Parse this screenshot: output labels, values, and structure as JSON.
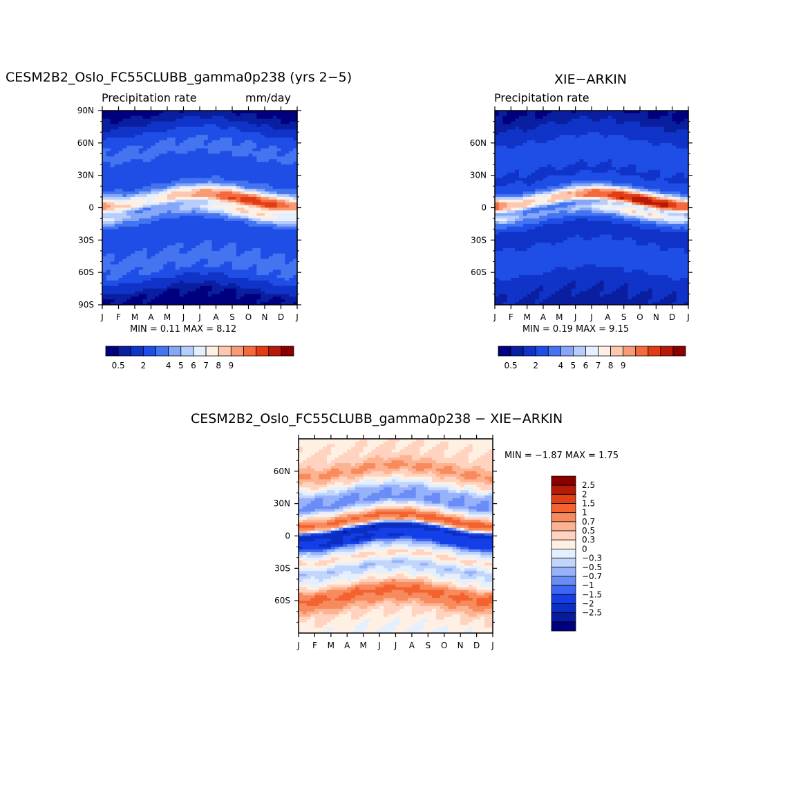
{
  "palette_abs": [
    "#00007f",
    "#0a1ea0",
    "#1033c8",
    "#1e4ee6",
    "#4474f0",
    "#86a7f7",
    "#b7cdfb",
    "#e4efff",
    "#fff0e4",
    "#fec8b0",
    "#f99a77",
    "#f5693f",
    "#e23d12",
    "#b91a07",
    "#8a0000"
  ],
  "palette_diff": [
    "#00007f",
    "#081a9e",
    "#0b2fc2",
    "#153fe6",
    "#3d66f2",
    "#6a8cf6",
    "#97b2fa",
    "#c2d6fc",
    "#e4efff",
    "#fff0e4",
    "#ffd3bf",
    "#fcb391",
    "#f88b5d",
    "#f3622f",
    "#e04015",
    "#b41c07",
    "#8a0000"
  ],
  "chart_data": [
    {
      "id": "model",
      "type": "heatmap",
      "title": "CESM2B2_Oslo_FC55CLUBB_gamma0p238 (yrs 2−5)",
      "left_subtitle": "Precipitation  rate",
      "right_subtitle": "mm/day",
      "x_tick_labels": [
        "J",
        "F",
        "M",
        "A",
        "M",
        "J",
        "J",
        "A",
        "S",
        "O",
        "N",
        "D",
        "J"
      ],
      "y_tick_labels": [
        "90N",
        "60N",
        "30N",
        "0",
        "30S",
        "60S",
        "90S"
      ],
      "y_tick_values": [
        90,
        60,
        30,
        0,
        -30,
        -60,
        -90
      ],
      "ylim": [
        -90,
        90
      ],
      "min_max_text": "MIN =    0.11  MAX =     8.12",
      "colorbar_labels": [
        "0.5",
        "2",
        "4",
        "5",
        "6",
        "7",
        "8",
        "9"
      ],
      "profile_lat": [
        -90,
        -80,
        -70,
        -60,
        -50,
        -40,
        -30,
        -20,
        -15,
        -10,
        -5,
        0,
        5,
        10,
        15,
        20,
        30,
        40,
        50,
        60,
        70,
        80,
        90
      ],
      "profile_val": [
        0.3,
        0.5,
        1.5,
        3.0,
        3.2,
        3.0,
        2.6,
        2.3,
        2.8,
        4.2,
        5.2,
        4.8,
        6.8,
        6.5,
        4.8,
        3.2,
        2.2,
        2.6,
        3.2,
        3.0,
        2.0,
        0.8,
        0.3
      ]
    },
    {
      "id": "obs",
      "type": "heatmap",
      "title": "XIE−ARKIN",
      "left_subtitle": "Precipitation  rate",
      "x_tick_labels": [
        "J",
        "F",
        "M",
        "A",
        "M",
        "J",
        "J",
        "A",
        "S",
        "O",
        "N",
        "D",
        "J"
      ],
      "y_tick_labels": [
        "60N",
        "30N",
        "0",
        "30S",
        "60S"
      ],
      "y_tick_values": [
        60,
        30,
        0,
        -30,
        -60
      ],
      "ylim": [
        -90,
        90
      ],
      "min_max_text": "MIN =    0.19  MAX =     9.15",
      "colorbar_labels": [
        "0.5",
        "2",
        "4",
        "5",
        "6",
        "7",
        "8",
        "9"
      ],
      "profile_lat": [
        -90,
        -80,
        -70,
        -60,
        -50,
        -40,
        -30,
        -20,
        -15,
        -10,
        -5,
        0,
        5,
        10,
        15,
        20,
        30,
        40,
        50,
        60,
        70,
        80,
        90
      ],
      "profile_val": [
        0.8,
        1.0,
        1.2,
        2.0,
        2.8,
        2.4,
        1.8,
        1.6,
        2.4,
        4.0,
        5.2,
        4.2,
        7.2,
        7.0,
        4.6,
        2.6,
        1.8,
        2.2,
        2.6,
        2.2,
        1.4,
        0.8,
        0.4
      ]
    },
    {
      "id": "diff",
      "type": "heatmap",
      "title": "CESM2B2_Oslo_FC55CLUBB_gamma0p238  −  XIE−ARKIN",
      "x_tick_labels": [
        "J",
        "F",
        "M",
        "A",
        "M",
        "J",
        "J",
        "A",
        "S",
        "O",
        "N",
        "D",
        "J"
      ],
      "y_tick_labels": [
        "60N",
        "30N",
        "0",
        "30S",
        "60S"
      ],
      "y_tick_values": [
        60,
        30,
        0,
        -30,
        -60
      ],
      "ylim": [
        -90,
        90
      ],
      "min_max_text": "MIN =    −1.87  MAX =      1.75",
      "colorbar_labels": [
        "2.5",
        "2",
        "1.5",
        "1",
        "0.7",
        "0.5",
        "0.3",
        "0",
        "−0.3",
        "−0.5",
        "−0.7",
        "−1",
        "−1.5",
        "−2",
        "−2.5"
      ],
      "profile_lat": [
        -90,
        -80,
        -70,
        -60,
        -55,
        -50,
        -45,
        -40,
        -30,
        -20,
        -10,
        -5,
        0,
        5,
        10,
        15,
        20,
        30,
        40,
        50,
        60,
        70,
        80,
        90
      ],
      "profile_val": [
        0.1,
        0.2,
        0.4,
        0.9,
        1.1,
        0.9,
        0.4,
        0.1,
        -0.3,
        0.4,
        -0.4,
        -1.5,
        -1.3,
        -1.9,
        0.6,
        1.2,
        0.5,
        -0.6,
        -0.4,
        0.3,
        0.8,
        0.4,
        0.3,
        0.2
      ]
    }
  ]
}
